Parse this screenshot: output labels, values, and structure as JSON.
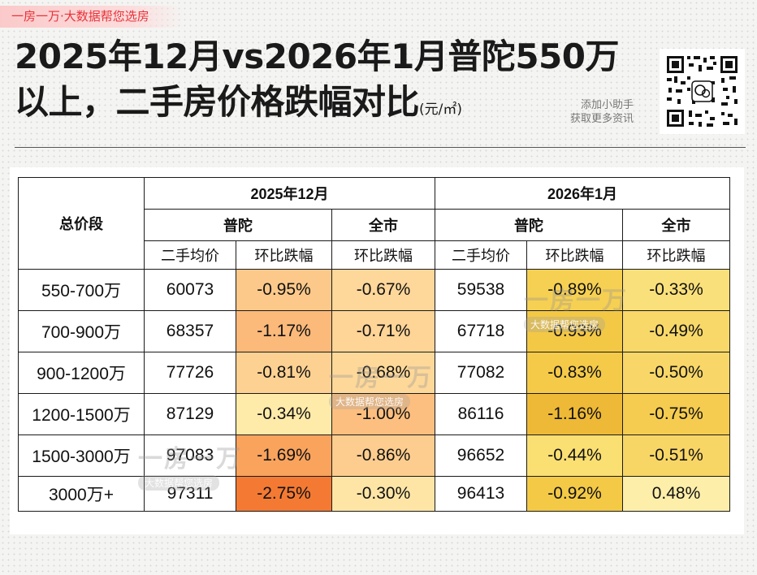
{
  "brand": {
    "tag": "一房一万·大数据帮您选房"
  },
  "title": {
    "line1": "2025年12月vs2026年1月普陀550万",
    "line2": "以上，二手房价格跌幅对比",
    "unit": "(元/㎡)"
  },
  "helper": {
    "line1": "添加小助手",
    "line2": "获取更多资讯"
  },
  "watermark": {
    "big": "一房一万",
    "small": "大数据帮您选房"
  },
  "table": {
    "row_header": "总价段",
    "periods": [
      "2025年12月",
      "2026年1月"
    ],
    "areas": [
      "普陀",
      "全市",
      "普陀",
      "全市"
    ],
    "columns": [
      "二手均价",
      "环比跌幅",
      "环比跌幅",
      "二手均价",
      "环比跌幅",
      "环比跌幅"
    ],
    "rows": [
      {
        "band": "550-700万",
        "dec_price": "60073",
        "dec_putuo": "-0.95%",
        "dec_city": "-0.67%",
        "jan_price": "59538",
        "jan_putuo": "-0.89%",
        "jan_city": "-0.33%"
      },
      {
        "band": "700-900万",
        "dec_price": "68357",
        "dec_putuo": "-1.17%",
        "dec_city": "-0.71%",
        "jan_price": "67718",
        "jan_putuo": "-0.93%",
        "jan_city": "-0.49%"
      },
      {
        "band": "900-1200万",
        "dec_price": "77726",
        "dec_putuo": "-0.81%",
        "dec_city": "-0.68%",
        "jan_price": "77082",
        "jan_putuo": "-0.83%",
        "jan_city": "-0.50%"
      },
      {
        "band": "1200-1500万",
        "dec_price": "87129",
        "dec_putuo": "-0.34%",
        "dec_city": "-1.00%",
        "jan_price": "86116",
        "jan_putuo": "-1.16%",
        "jan_city": "-0.75%"
      },
      {
        "band": "1500-3000万",
        "dec_price": "97083",
        "dec_putuo": "-1.69%",
        "dec_city": "-0.86%",
        "jan_price": "96652",
        "jan_putuo": "-0.44%",
        "jan_city": "-0.51%"
      },
      {
        "band": "3000万+",
        "dec_price": "97311",
        "dec_putuo": "-2.75%",
        "dec_city": "-0.30%",
        "jan_price": "96413",
        "jan_putuo": "-0.92%",
        "jan_city": "0.48%"
      }
    ]
  },
  "heat_colors": {
    "dec_putuo": [
      "#fcc98a",
      "#fbb97a",
      "#fdd192",
      "#feeaa9",
      "#f9a35d",
      "#f47a33"
    ],
    "dec_city": [
      "#fed79a",
      "#fed497",
      "#fed899",
      "#fcbf7f",
      "#fdcd8f",
      "#fee5a6"
    ],
    "jan_putuo": [
      "#f6d052",
      "#f3c845",
      "#f4ca48",
      "#eeb936",
      "#fadf73",
      "#f3c946"
    ],
    "jan_city": [
      "#fae07a",
      "#f8d869",
      "#f8d768",
      "#f5cc50",
      "#f8d666",
      "#fdeeaa"
    ]
  }
}
